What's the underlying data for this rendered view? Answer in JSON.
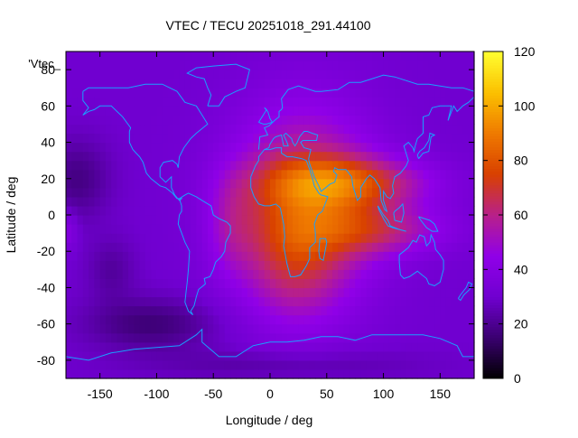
{
  "chart_data": {
    "type": "heatmap",
    "title": "VTEC / TECU 20251018_291.44100",
    "xlabel": "Longitude / deg",
    "ylabel": "Latitude / deg",
    "legend_key": "'Vtec_",
    "xlim": [
      -180,
      180
    ],
    "ylim": [
      -90,
      90
    ],
    "x_ticks": [
      -150,
      -100,
      -50,
      0,
      50,
      100,
      150
    ],
    "y_ticks": [
      -80,
      -60,
      -40,
      -20,
      0,
      20,
      40,
      60,
      80
    ],
    "colorbar": {
      "range": [
        0,
        120
      ],
      "ticks": [
        0,
        20,
        40,
        60,
        80,
        100,
        120
      ],
      "palette": [
        "#000000",
        "#3a0070",
        "#7000d0",
        "#9000e8",
        "#b8208a",
        "#d84000",
        "#ef7a00",
        "#fbc000",
        "#ffff30"
      ]
    },
    "overlay": "coastlines",
    "overlay_color": "#1aa0ff",
    "field": {
      "background": 30,
      "features": [
        {
          "lon": 30,
          "lat": 5,
          "sdlon": 45,
          "sdlat": 38,
          "amp": 40
        },
        {
          "lon": 70,
          "lat": 18,
          "sdlon": 50,
          "sdlat": 10,
          "amp": 35
        },
        {
          "lon": 95,
          "lat": -8,
          "sdlon": 45,
          "sdlat": 10,
          "amp": 25
        },
        {
          "lon": 20,
          "lat": -25,
          "sdlon": 30,
          "sdlat": 25,
          "amp": 15
        },
        {
          "lon": -35,
          "lat": -5,
          "sdlon": 15,
          "sdlat": 20,
          "amp": 12
        },
        {
          "lon": -170,
          "lat": 20,
          "sdlon": 20,
          "sdlat": 15,
          "amp": -12
        },
        {
          "lon": -105,
          "lat": -60,
          "sdlon": 40,
          "sdlat": 10,
          "amp": -14
        },
        {
          "lon": -140,
          "lat": -30,
          "sdlon": 15,
          "sdlat": 12,
          "amp": -8
        },
        {
          "lon": 10,
          "lat": -82,
          "sdlon": 80,
          "sdlat": 6,
          "amp": -8
        },
        {
          "lon": -178,
          "lat": -8,
          "sdlon": 6,
          "sdlat": 8,
          "amp": 10
        }
      ]
    }
  }
}
